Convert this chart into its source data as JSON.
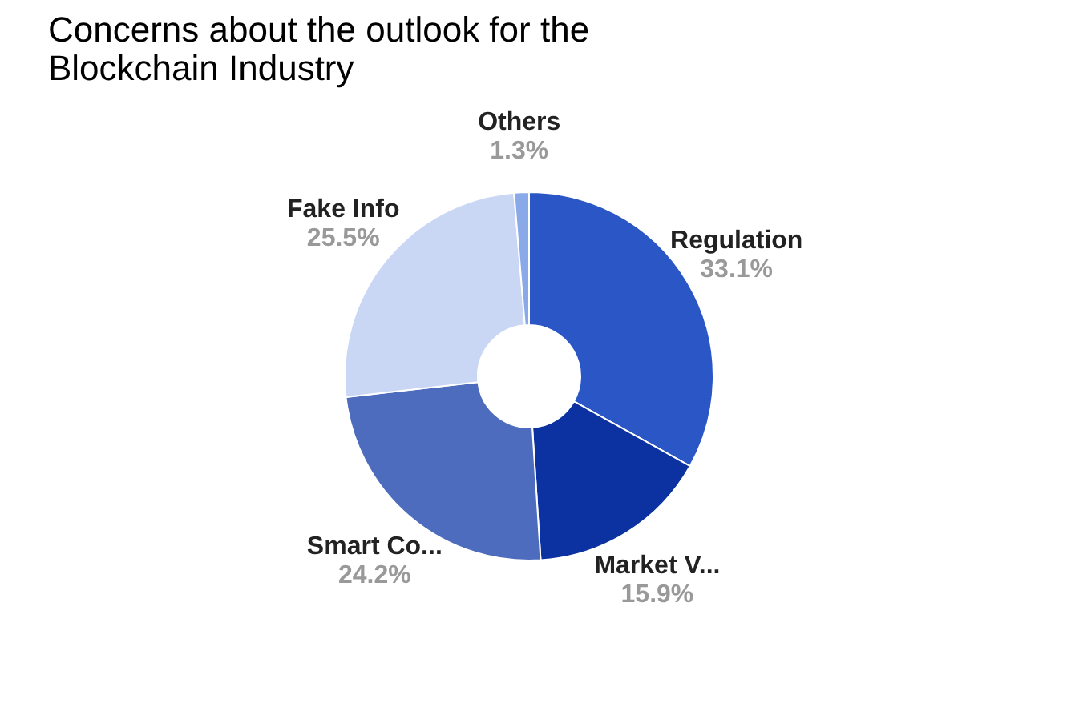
{
  "chart_data": {
    "type": "donut",
    "title": "Concerns about the outlook for the\nBlockchain Industry",
    "categories": [
      "Regulation",
      "Market V...",
      "Smart Co...",
      "Fake Info",
      "Others"
    ],
    "values": [
      33.1,
      15.9,
      24.2,
      25.5,
      1.3
    ],
    "value_labels": [
      "33.1%",
      "15.9%",
      "24.2%",
      "25.5%",
      "1.3%"
    ],
    "colors": [
      "#2a56c6",
      "#0b32a0",
      "#4e6cbd",
      "#c9d7f5",
      "#8aa9e8"
    ],
    "legend": false
  }
}
